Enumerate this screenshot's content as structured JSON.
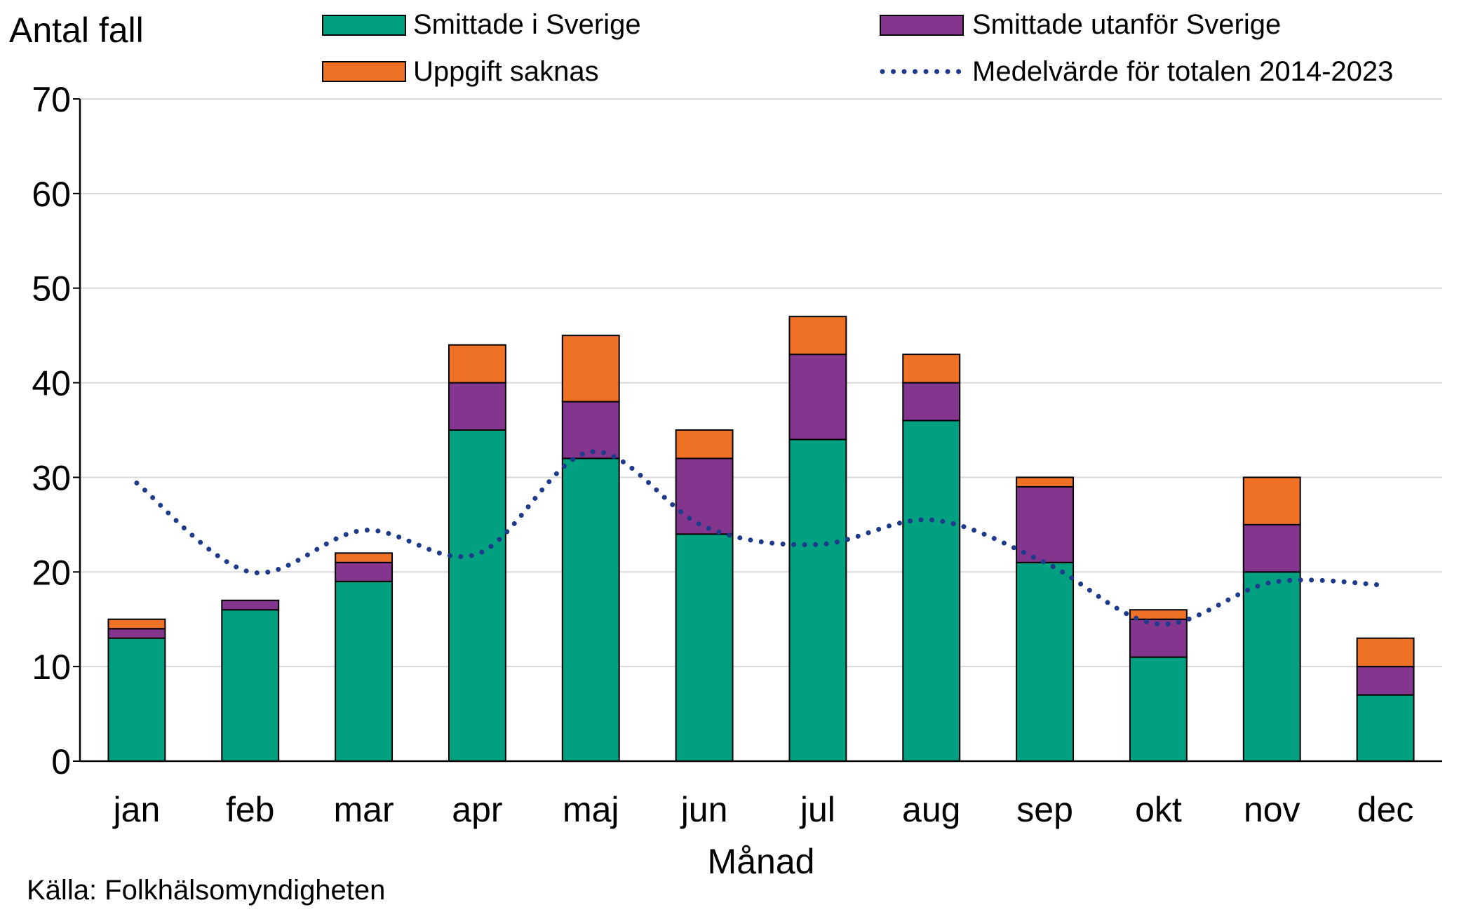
{
  "chart_data": {
    "type": "bar",
    "stacked": true,
    "ylabel": "Antal fall",
    "xlabel": "Månad",
    "ylim": [
      0,
      70
    ],
    "yticks": [
      0,
      10,
      20,
      30,
      40,
      50,
      60,
      70
    ],
    "grid": true,
    "legend_position": "top",
    "categories": [
      "jan",
      "feb",
      "mar",
      "apr",
      "maj",
      "jun",
      "jul",
      "aug",
      "sep",
      "okt",
      "nov",
      "dec"
    ],
    "series": [
      {
        "name": "Smittade i Sverige",
        "color": "#00A080",
        "values": [
          13,
          16,
          19,
          35,
          32,
          24,
          34,
          36,
          21,
          11,
          20,
          7
        ]
      },
      {
        "name": "Smittade utanför Sverige",
        "color": "#84368E",
        "values": [
          1,
          1,
          2,
          5,
          6,
          8,
          9,
          4,
          8,
          4,
          5,
          3
        ]
      },
      {
        "name": "Uppgift saknas",
        "color": "#EE7126",
        "values": [
          1,
          0,
          1,
          4,
          7,
          3,
          4,
          3,
          1,
          1,
          5,
          3
        ]
      }
    ],
    "mean_line": {
      "name": "Medelvärde för totalen 2014-2023",
      "color": "#1F3A8A",
      "style": "dotted",
      "values": [
        29.4,
        20.0,
        24.4,
        21.9,
        32.7,
        24.8,
        22.9,
        25.5,
        21.0,
        14.5,
        18.9,
        18.6
      ]
    }
  },
  "source": "Källa: Folkhälsomyndigheten"
}
